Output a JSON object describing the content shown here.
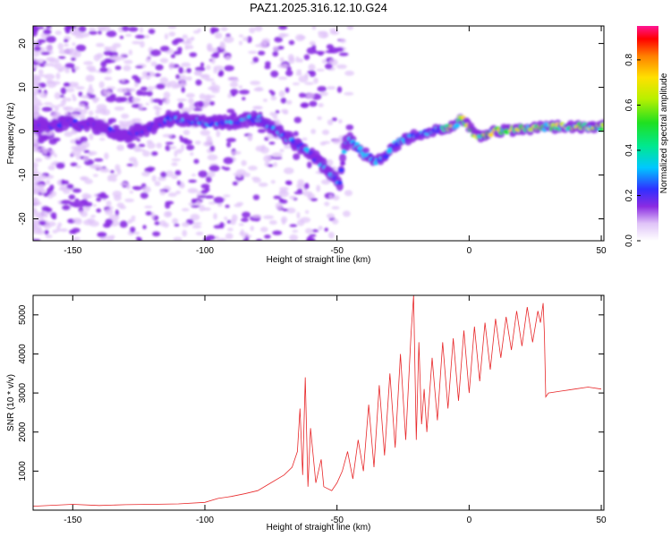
{
  "title": "PAZ1.2025.316.12.10.G24",
  "chart_data": [
    {
      "type": "heatmap",
      "title": "PAZ1.2025.316.12.10.G24",
      "xlabel": "Height of straight line (km)",
      "ylabel": "Frequency (Hz)",
      "xlim": [
        -165,
        51
      ],
      "ylim": [
        -25,
        24
      ],
      "xticks": [
        -150,
        -100,
        -50,
        0,
        50
      ],
      "yticks": [
        -20,
        -10,
        0,
        10,
        20
      ],
      "ridge": {
        "x": [
          -163,
          -150,
          -140,
          -130,
          -120,
          -112,
          -100,
          -90,
          -80,
          -75,
          -70,
          -65,
          -60,
          -55,
          -52,
          -49,
          -47,
          -45,
          -40,
          -35,
          -32,
          -30,
          -25,
          -20,
          -15,
          -10,
          -5,
          -3,
          0,
          2,
          5,
          10,
          20,
          30,
          40,
          50
        ],
        "y": [
          1,
          2,
          1,
          -1,
          1,
          3,
          2,
          2,
          3,
          1,
          -1,
          -3,
          -5,
          -8,
          -10,
          -12,
          -3,
          -2,
          -5,
          -7,
          -6,
          -4,
          -2,
          -1,
          0,
          0.5,
          1.5,
          3,
          1,
          -1,
          -1,
          0,
          0.5,
          1,
          1,
          1
        ]
      },
      "colorbar": {
        "label": "Normalized spectral amplitude",
        "range": [
          0,
          0.95
        ],
        "ticks": [
          "0.0",
          "0.2",
          "0.4",
          "0.6",
          "0.8"
        ]
      }
    },
    {
      "type": "line",
      "xlabel": "Height of straight line (km)",
      "ylabel": "SNR (10 * v/v)",
      "xlim": [
        -165,
        51
      ],
      "ylim": [
        0,
        5500
      ],
      "xticks": [
        -150,
        -100,
        -50,
        0,
        50
      ],
      "yticks": [
        1000,
        2000,
        3000,
        4000,
        5000
      ],
      "series": [
        {
          "name": "SNR",
          "color": "#e8282a",
          "x": [
            -165,
            -150,
            -140,
            -130,
            -120,
            -110,
            -100,
            -95,
            -90,
            -85,
            -80,
            -75,
            -70,
            -67,
            -65,
            -64,
            -63,
            -62,
            -61,
            -60,
            -58,
            -56,
            -55,
            -52,
            -50,
            -48,
            -46,
            -44,
            -42,
            -40,
            -38,
            -36,
            -34,
            -32,
            -30,
            -28,
            -26,
            -24,
            -22,
            -21,
            -20,
            -19,
            -18,
            -17,
            -16,
            -14,
            -12,
            -10,
            -8,
            -6,
            -4,
            -2,
            0,
            2,
            4,
            6,
            8,
            10,
            12,
            14,
            16,
            18,
            20,
            22,
            24,
            26,
            27,
            28,
            28.5,
            29,
            30,
            35,
            40,
            45,
            50
          ],
          "y": [
            100,
            150,
            120,
            140,
            150,
            160,
            200,
            300,
            350,
            420,
            500,
            700,
            900,
            1100,
            1500,
            2600,
            900,
            3400,
            600,
            2100,
            700,
            1300,
            600,
            500,
            700,
            1000,
            1500,
            800,
            1800,
            1000,
            2700,
            1100,
            3200,
            1400,
            3500,
            1600,
            4000,
            1800,
            4500,
            5500,
            1800,
            4300,
            2200,
            3100,
            2000,
            3900,
            2300,
            4300,
            2600,
            4400,
            2800,
            4600,
            3000,
            4700,
            3300,
            4800,
            3600,
            4900,
            3900,
            4950,
            4100,
            5100,
            4200,
            5200,
            4300,
            5100,
            4800,
            5300,
            4500,
            2900,
            3000,
            3050,
            3100,
            3150,
            3100
          ]
        }
      ]
    }
  ]
}
